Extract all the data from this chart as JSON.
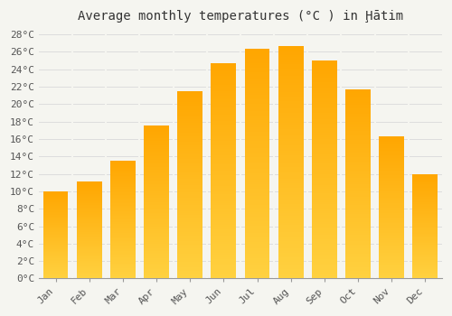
{
  "title": "Average monthly temperatures (°C ) in Ḩātim",
  "months": [
    "Jan",
    "Feb",
    "Mar",
    "Apr",
    "May",
    "Jun",
    "Jul",
    "Aug",
    "Sep",
    "Oct",
    "Nov",
    "Dec"
  ],
  "temperatures": [
    10.0,
    11.1,
    13.5,
    17.5,
    21.5,
    24.7,
    26.3,
    26.7,
    25.0,
    21.7,
    16.3,
    12.0
  ],
  "bar_color_top": "#FFA500",
  "bar_color_bottom": "#FFD060",
  "background_color": "#F5F5F0",
  "grid_color": "#DDDDDD",
  "y_min": 0,
  "y_max": 28,
  "y_step": 2,
  "title_fontsize": 10,
  "tick_fontsize": 8
}
